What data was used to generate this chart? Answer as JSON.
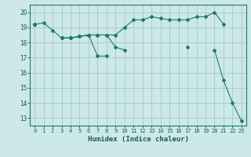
{
  "title": "",
  "xlabel": "Humidex (Indice chaleur)",
  "bg_color": "#cce8e8",
  "grid_color": "#aacccc",
  "line_color": "#1a7a6e",
  "xlim": [
    -0.5,
    23.5
  ],
  "ylim": [
    12.5,
    20.5
  ],
  "yticks": [
    13,
    14,
    15,
    16,
    17,
    18,
    19,
    20
  ],
  "xticks": [
    0,
    1,
    2,
    3,
    4,
    5,
    6,
    7,
    8,
    9,
    10,
    11,
    12,
    13,
    14,
    15,
    16,
    17,
    18,
    19,
    20,
    21,
    22,
    23
  ],
  "series": [
    [
      19.2,
      19.3,
      18.8,
      18.3,
      18.3,
      18.4,
      18.5,
      18.5,
      18.5,
      18.5,
      19.0,
      19.5,
      19.5,
      19.7,
      19.6,
      19.5,
      19.5,
      19.5,
      19.7,
      19.7,
      20.0,
      19.2,
      null,
      null
    ],
    [
      19.2,
      null,
      null,
      18.3,
      18.3,
      18.4,
      18.5,
      18.5,
      18.5,
      17.7,
      17.5,
      null,
      null,
      null,
      null,
      null,
      null,
      17.7,
      null,
      null,
      null,
      null,
      null,
      null
    ],
    [
      19.2,
      null,
      null,
      18.3,
      18.3,
      18.4,
      18.5,
      17.1,
      17.1,
      null,
      null,
      null,
      null,
      null,
      null,
      null,
      null,
      null,
      null,
      null,
      null,
      null,
      null,
      null
    ],
    [
      19.2,
      null,
      null,
      null,
      null,
      null,
      null,
      null,
      null,
      null,
      null,
      null,
      null,
      null,
      null,
      null,
      null,
      null,
      null,
      null,
      17.5,
      15.5,
      14.0,
      12.8
    ]
  ]
}
